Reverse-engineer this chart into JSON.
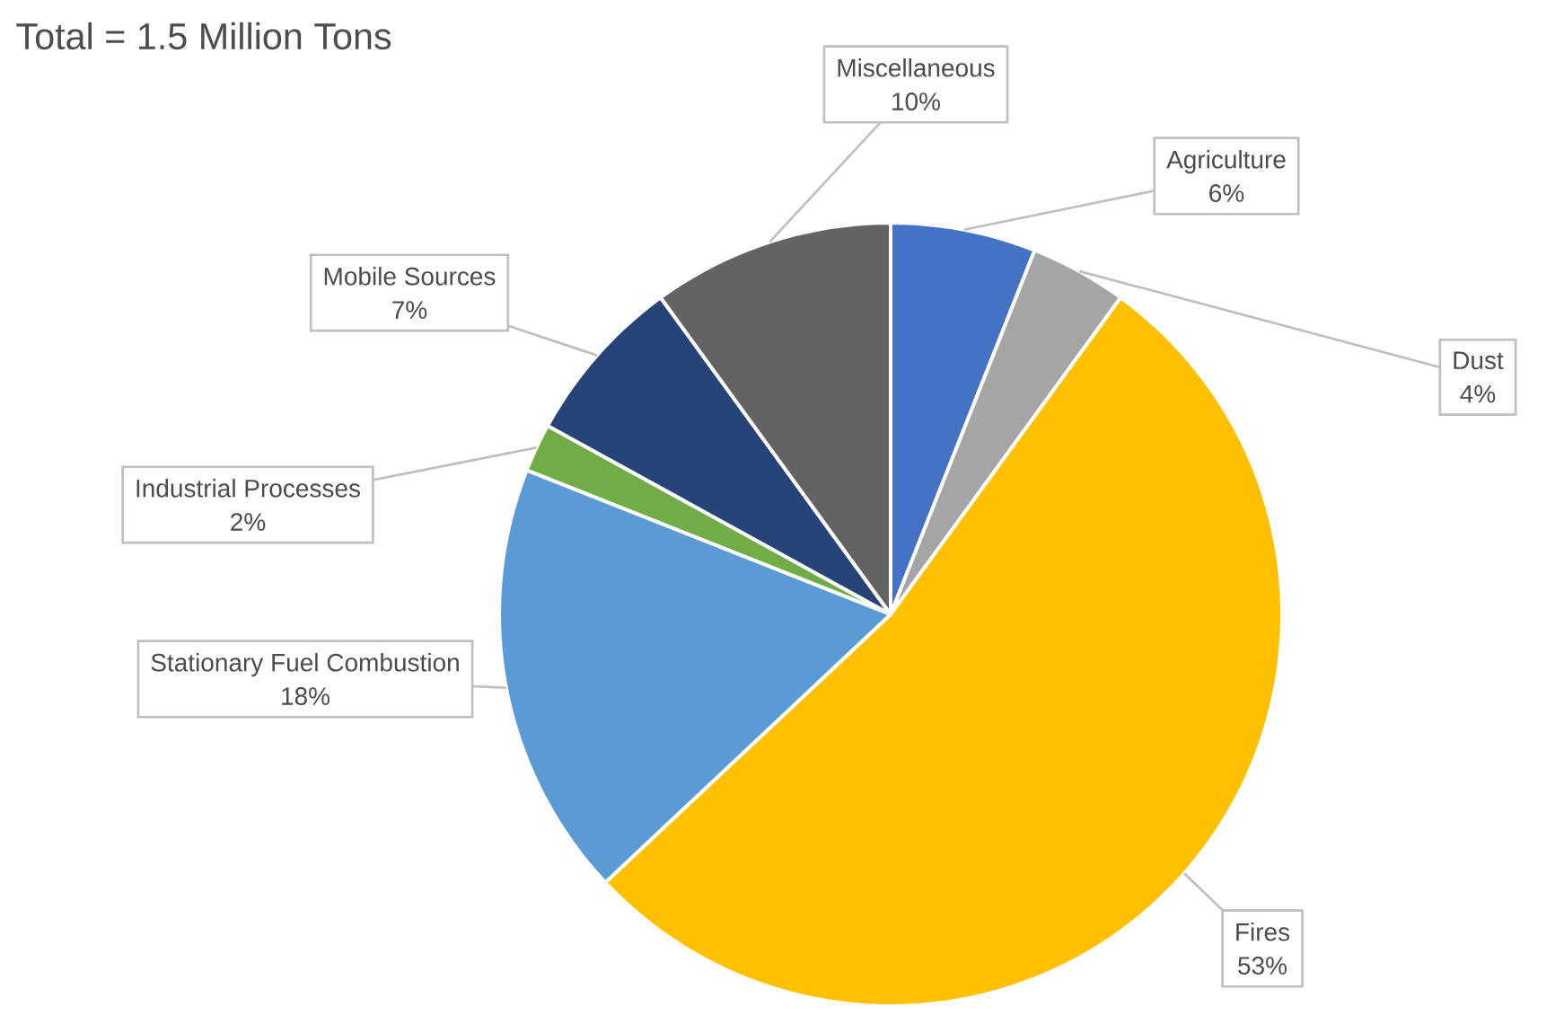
{
  "chart_data": {
    "type": "pie",
    "title": "Total = 1.5 Million Tons",
    "categories": [
      "Agriculture",
      "Dust",
      "Fires",
      "Stationary Fuel Combustion",
      "Industrial Processes",
      "Mobile Sources",
      "Miscellaneous"
    ],
    "values": [
      6,
      4,
      53,
      18,
      2,
      7,
      10
    ],
    "value_labels": [
      "6%",
      "4%",
      "53%",
      "18%",
      "2%",
      "7%",
      "10%"
    ],
    "colors": [
      "#4472c4",
      "#a5a5a5",
      "#ffc000",
      "#5b9bd5",
      "#70ad47",
      "#264478",
      "#636363"
    ]
  }
}
